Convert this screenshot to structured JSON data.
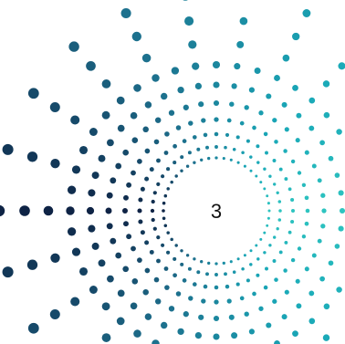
{
  "loader": {
    "count_text": "3",
    "colors": {
      "dark": "#0e2345",
      "mid": "#1d6f8c",
      "teal": "#19a7b7",
      "aqua": "#2ec4c0",
      "text": "#111111",
      "background": "#ffffff"
    },
    "icon": "radial-dot-burst-icon"
  }
}
